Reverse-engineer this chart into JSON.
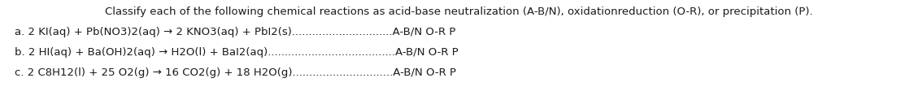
{
  "title": "    Classify each of the following chemical reactions as acid-base neutralization (A-B/N), oxidationreduction (O-R), or precipitation (P).",
  "line_a": "a. 2 KI(aq) + Pb(NO3)2(aq) → 2 KNO3(aq) + PbI2(s)..............................A-B/N O-R P",
  "line_b": "b. 2 HI(aq) + Ba(OH)2(aq) → H2O(l) + BaI2(aq)......................................A-B/N O-R P",
  "line_c": "c. 2 C8H12(l) + 25 O2(g) → 16 CO2(g) + 18 H2O(g)..............................A-B/N O-R P",
  "bg_color": "#ffffff",
  "text_color": "#1a1a1a",
  "fontsize": 9.5,
  "font_family": "DejaVu Sans"
}
